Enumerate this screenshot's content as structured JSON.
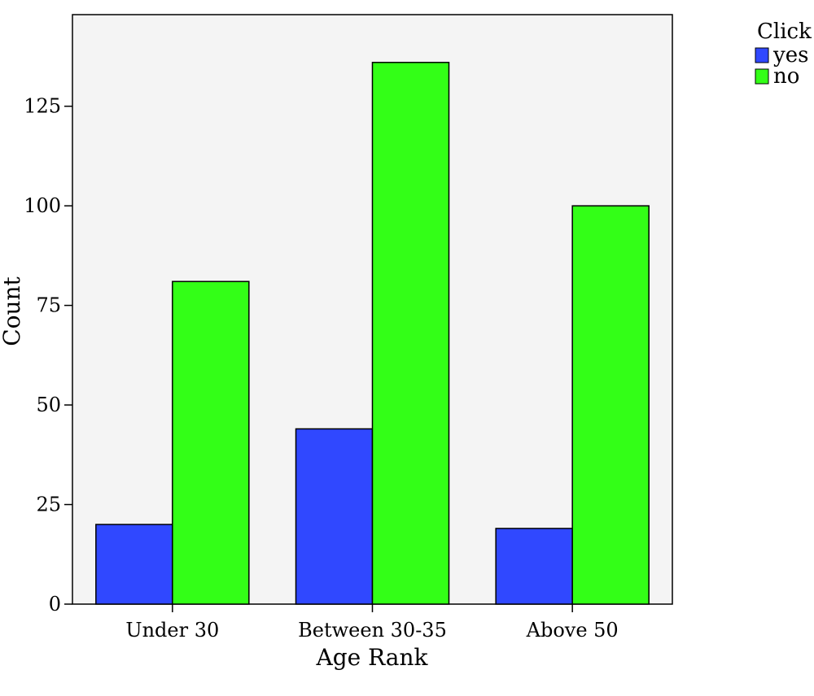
{
  "chart_data": {
    "type": "bar",
    "xlabel": "Age Rank",
    "ylabel": "Count",
    "categories": [
      "Under 30",
      "Between 30-35",
      "Above 50"
    ],
    "series": [
      {
        "name": "yes",
        "values": [
          20,
          44,
          19
        ],
        "color": "#3048ff"
      },
      {
        "name": "no",
        "values": [
          81,
          136,
          100
        ],
        "color": "#33ff17"
      }
    ],
    "ylim": [
      0,
      148
    ],
    "yticks": [
      0,
      25,
      50,
      75,
      100,
      125
    ],
    "grid": false,
    "legend": {
      "title": "Click",
      "placement": "top-right"
    },
    "background_color": "#f4f4f4"
  }
}
